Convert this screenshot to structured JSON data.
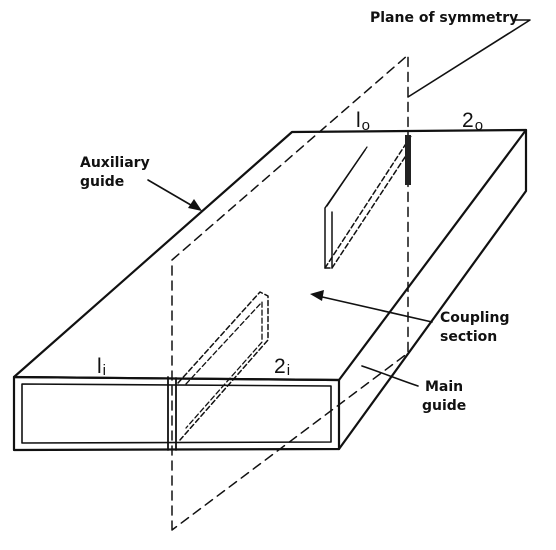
{
  "labels": {
    "plane_of_symmetry": "Plane of symmetry",
    "auxiliary_guide_line1": "Auxiliary",
    "auxiliary_guide_line2": "guide",
    "coupling_section_line1": "Coupling",
    "coupling_section_line2": "section",
    "main_guide_line1": "Main",
    "main_guide_line2": "guide"
  },
  "ports": {
    "p1o_main": "l",
    "p1o_sub": "o",
    "p2o_main": "2",
    "p2o_sub": "o",
    "p1i_main": "l",
    "p1i_sub": "i",
    "p2i_main": "2",
    "p2i_sub": "i"
  },
  "colors": {
    "ink": "#111111",
    "background": "#ffffff"
  }
}
